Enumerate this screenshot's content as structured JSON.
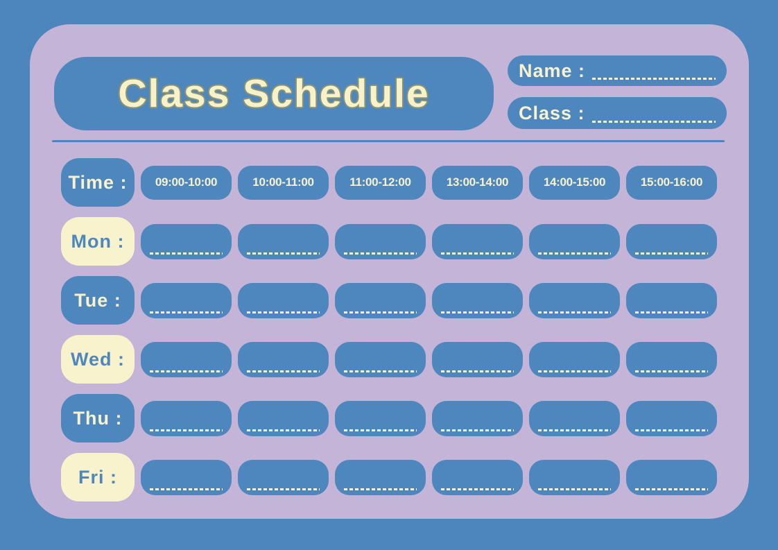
{
  "header": {
    "title": "Class Schedule",
    "name_label": "Name :",
    "name_value": "",
    "class_label": "Class :",
    "class_value": ""
  },
  "schedule": {
    "time_label": "Time :",
    "time_slots": [
      "09:00-10:00",
      "10:00-11:00",
      "11:00-12:00",
      "13:00-14:00",
      "14:00-15:00",
      "15:00-16:00"
    ],
    "days": [
      {
        "label": "Mon :",
        "entries": [
          "",
          "",
          "",
          "",
          "",
          ""
        ]
      },
      {
        "label": "Tue :",
        "entries": [
          "",
          "",
          "",
          "",
          "",
          ""
        ]
      },
      {
        "label": "Wed :",
        "entries": [
          "",
          "",
          "",
          "",
          "",
          ""
        ]
      },
      {
        "label": "Thu :",
        "entries": [
          "",
          "",
          "",
          "",
          "",
          ""
        ]
      },
      {
        "label": "Fri :",
        "entries": [
          "",
          "",
          "",
          "",
          "",
          ""
        ]
      }
    ]
  },
  "colors": {
    "background_blue": "#4d86bd",
    "card_purple": "#c4b4d7",
    "chip_blue": "#4d87be",
    "cream": "#f8f3cc",
    "title_fill": "#f7f2c9",
    "title_outline": "#8d9472"
  }
}
